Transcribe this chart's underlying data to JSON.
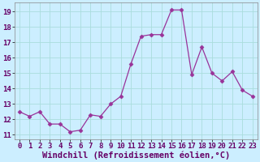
{
  "x": [
    0,
    1,
    2,
    3,
    4,
    5,
    6,
    7,
    8,
    9,
    10,
    11,
    12,
    13,
    14,
    15,
    16,
    17,
    18,
    19,
    20,
    21,
    22,
    23
  ],
  "y": [
    12.5,
    12.2,
    12.5,
    11.7,
    11.7,
    11.2,
    11.3,
    12.3,
    12.2,
    13.0,
    13.5,
    15.6,
    17.4,
    17.5,
    17.5,
    19.1,
    19.1,
    14.9,
    16.7,
    15.0,
    14.5,
    15.1,
    13.9,
    13.5
  ],
  "ylabel_ticks": [
    11,
    12,
    13,
    14,
    15,
    16,
    17,
    18,
    19
  ],
  "xlabel_ticks": [
    0,
    1,
    2,
    3,
    4,
    5,
    6,
    7,
    8,
    9,
    10,
    11,
    12,
    13,
    14,
    15,
    16,
    17,
    18,
    19,
    20,
    21,
    22,
    23
  ],
  "ylim": [
    10.7,
    19.6
  ],
  "xlim": [
    -0.5,
    23.5
  ],
  "line_color": "#993399",
  "marker": "D",
  "marker_size": 2.5,
  "bg_color": "#cceeff",
  "grid_color": "#aadddd",
  "xlabel": "Windchill (Refroidissement éolien,°C)",
  "tick_fontsize": 6.5,
  "label_fontsize": 7.5
}
